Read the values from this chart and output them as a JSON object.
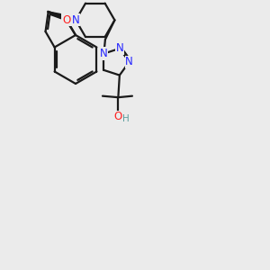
{
  "background_color": "#ebebeb",
  "bond_color": "#1a1a1a",
  "nitrogen_color": "#2323ff",
  "oxygen_color": "#ff2020",
  "hydrogen_color": "#5a9e9e",
  "line_width": 1.6,
  "figsize": [
    3.0,
    3.0
  ],
  "dpi": 100,
  "xlim": [
    0,
    10
  ],
  "ylim": [
    0,
    10
  ]
}
